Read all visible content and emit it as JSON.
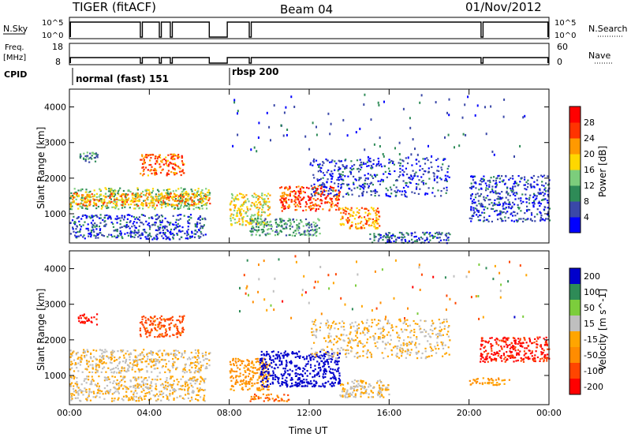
{
  "header": {
    "title": "TIGER (fitACF)",
    "beam": "Beam 04",
    "date": "01/Nov/2012"
  },
  "nsky_panel": {
    "left_label": "N.Sky",
    "right_label": "N.Search",
    "left_ticks": [
      "10^5",
      "10^0"
    ],
    "right_ticks": [
      "10^5",
      "10^0"
    ]
  },
  "freq_panel": {
    "left_label_1": "Freq.",
    "left_label_2": "[MHz]",
    "right_label": "Nave",
    "left_ticks": [
      "18",
      "8"
    ],
    "right_ticks": [
      "60",
      "0"
    ]
  },
  "cpid": {
    "label": "CPID",
    "modes": [
      {
        "name": "normal (fast) 151",
        "start_ut": "00:00"
      },
      {
        "name": "rbsp 200",
        "start_ut": "07:40"
      }
    ]
  },
  "chart_data": [
    {
      "type": "heatmap",
      "panel": "power",
      "xlabel": "",
      "ylabel": "Slant Range [km]",
      "x_range_hours": [
        0,
        24
      ],
      "ylim": [
        180,
        4500
      ],
      "y_ticks": [
        "1000",
        "2000",
        "3000",
        "4000"
      ],
      "x_ticks": [
        "00:00",
        "04:00",
        "08:00",
        "12:00",
        "16:00",
        "20:00",
        "00:00"
      ],
      "colorbar": {
        "label": "Power [dB]",
        "ticks": [
          "4",
          "8",
          "12",
          "16",
          "20",
          "24",
          "28"
        ],
        "range": [
          0,
          32
        ],
        "colors": [
          "#0000ff",
          "#3a48a8",
          "#2e8b57",
          "#7ccd7c",
          "#ffd700",
          "#ff9900",
          "#ff3300",
          "#ff0000"
        ]
      },
      "scatter_regions": [
        {
          "t": [
            0.0,
            7.0
          ],
          "r": [
            1150,
            1750
          ],
          "level": 14
        },
        {
          "t": [
            0.0,
            7.0
          ],
          "r": [
            1250,
            1600
          ],
          "level": 22
        },
        {
          "t": [
            3.5,
            5.7
          ],
          "r": [
            2100,
            2700
          ],
          "level": 24
        },
        {
          "t": [
            0.4,
            1.4
          ],
          "r": [
            2450,
            2750
          ],
          "level": 10
        },
        {
          "t": [
            0.0,
            6.8
          ],
          "r": [
            300,
            1000
          ],
          "level": 5
        },
        {
          "t": [
            8.0,
            10.0
          ],
          "r": [
            700,
            1600
          ],
          "level": 18
        },
        {
          "t": [
            9.0,
            12.5
          ],
          "r": [
            400,
            900
          ],
          "level": 10
        },
        {
          "t": [
            10.5,
            13.5
          ],
          "r": [
            1100,
            1800
          ],
          "level": 26
        },
        {
          "t": [
            13.5,
            15.5
          ],
          "r": [
            600,
            1200
          ],
          "level": 22
        },
        {
          "t": [
            12.0,
            19.0
          ],
          "r": [
            1500,
            2600
          ],
          "level": 5
        },
        {
          "t": [
            15.0,
            19.0
          ],
          "r": [
            200,
            500
          ],
          "level": 6
        },
        {
          "t": [
            20.0,
            24.0
          ],
          "r": [
            800,
            2100
          ],
          "level": 5
        }
      ]
    },
    {
      "type": "heatmap",
      "panel": "velocity",
      "xlabel": "Time UT",
      "ylabel": "Slant Range [km]",
      "x_range_hours": [
        0,
        24
      ],
      "ylim": [
        180,
        4500
      ],
      "y_ticks": [
        "1000",
        "2000",
        "3000",
        "4000"
      ],
      "x_ticks": [
        "00:00",
        "04:00",
        "08:00",
        "12:00",
        "16:00",
        "20:00",
        "00:00"
      ],
      "colorbar": {
        "label": "Velocity [m s^-1]",
        "ticks": [
          "200",
          "100",
          "50",
          "15",
          "-15",
          "-50",
          "-100",
          "-200"
        ],
        "range": [
          -250,
          250
        ],
        "colors": [
          "#0000cc",
          "#2e8b57",
          "#7ccd3c",
          "#bfbfbf",
          "#ffa500",
          "#ff8c00",
          "#ff4500",
          "#ff0000"
        ]
      },
      "scatter_regions": [
        {
          "t": [
            0.0,
            7.0
          ],
          "r": [
            1100,
            1750
          ],
          "level": 0
        },
        {
          "t": [
            0.4,
            1.4
          ],
          "r": [
            2450,
            2750
          ],
          "level": -200
        },
        {
          "t": [
            3.5,
            5.7
          ],
          "r": [
            2100,
            2700
          ],
          "level": -150
        },
        {
          "t": [
            0.0,
            6.8
          ],
          "r": [
            300,
            1000
          ],
          "level": 0
        },
        {
          "t": [
            8.0,
            10.0
          ],
          "r": [
            600,
            1500
          ],
          "level": -80
        },
        {
          "t": [
            9.5,
            13.5
          ],
          "r": [
            700,
            1700
          ],
          "level": 220
        },
        {
          "t": [
            13.5,
            16.0
          ],
          "r": [
            400,
            900
          ],
          "level": 0
        },
        {
          "t": [
            12.0,
            19.0
          ],
          "r": [
            1500,
            2600
          ],
          "level": 0
        },
        {
          "t": [
            9.0,
            11.0
          ],
          "r": [
            300,
            500
          ],
          "level": -120
        },
        {
          "t": [
            20.5,
            24.0
          ],
          "r": [
            1400,
            2100
          ],
          "level": -200
        },
        {
          "t": [
            20.0,
            22.0
          ],
          "r": [
            750,
            950
          ],
          "level": -60
        }
      ]
    }
  ]
}
